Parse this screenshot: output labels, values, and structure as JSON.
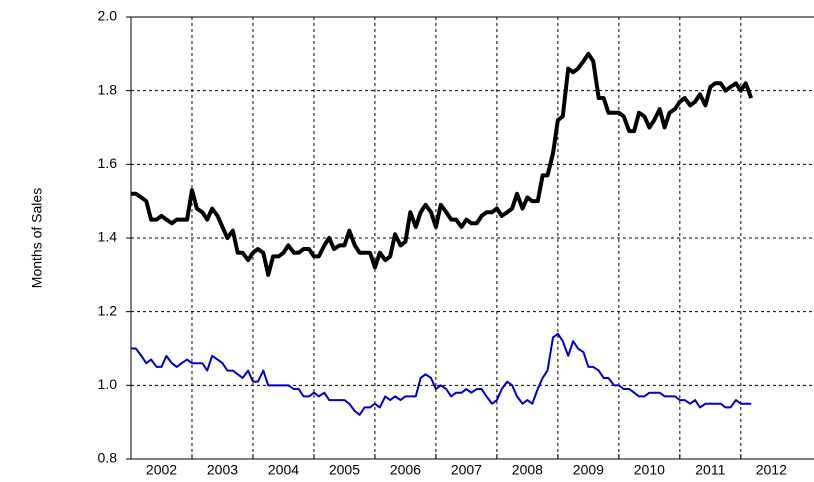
{
  "chart_data": {
    "type": "line",
    "y_label": "Months of Sales",
    "xlim": [
      2002,
      2013.2
    ],
    "xticks": [
      {
        "value": 2002,
        "label": "2002"
      },
      {
        "value": 2003,
        "label": "2003"
      },
      {
        "value": 2004,
        "label": "2004"
      },
      {
        "value": 2005,
        "label": "2005"
      },
      {
        "value": 2006,
        "label": "2006"
      },
      {
        "value": 2007,
        "label": "2007"
      },
      {
        "value": 2008,
        "label": "2008"
      },
      {
        "value": 2009,
        "label": "2009"
      },
      {
        "value": 2010,
        "label": "2010"
      },
      {
        "value": 2011,
        "label": "2011"
      },
      {
        "value": 2012,
        "label": "2012"
      }
    ],
    "ylim": [
      0.8,
      2.0
    ],
    "yticks": [
      0.8,
      {
        "value": 1,
        "label": "1.0"
      },
      1.2,
      1.4,
      1.6,
      1.8,
      {
        "value": 2,
        "label": "2.0"
      }
    ],
    "grid": true,
    "x": [
      2002.0,
      2002.08,
      2002.17,
      2002.25,
      2002.33,
      2002.42,
      2002.5,
      2002.58,
      2002.67,
      2002.75,
      2002.83,
      2002.92,
      2003.0,
      2003.08,
      2003.17,
      2003.25,
      2003.33,
      2003.42,
      2003.5,
      2003.58,
      2003.67,
      2003.75,
      2003.83,
      2003.92,
      2004.0,
      2004.08,
      2004.17,
      2004.25,
      2004.33,
      2004.42,
      2004.5,
      2004.58,
      2004.67,
      2004.75,
      2004.83,
      2004.92,
      2005.0,
      2005.08,
      2005.17,
      2005.25,
      2005.33,
      2005.42,
      2005.5,
      2005.58,
      2005.67,
      2005.75,
      2005.83,
      2005.92,
      2006.0,
      2006.08,
      2006.17,
      2006.25,
      2006.33,
      2006.42,
      2006.5,
      2006.58,
      2006.67,
      2006.75,
      2006.83,
      2006.92,
      2007.0,
      2007.08,
      2007.17,
      2007.25,
      2007.33,
      2007.42,
      2007.5,
      2007.58,
      2007.67,
      2007.75,
      2007.83,
      2007.92,
      2008.0,
      2008.08,
      2008.17,
      2008.25,
      2008.33,
      2008.42,
      2008.5,
      2008.58,
      2008.67,
      2008.75,
      2008.83,
      2008.92,
      2009.0,
      2009.08,
      2009.17,
      2009.25,
      2009.33,
      2009.42,
      2009.5,
      2009.58,
      2009.67,
      2009.75,
      2009.83,
      2009.92,
      2010.0,
      2010.08,
      2010.17,
      2010.25,
      2010.33,
      2010.42,
      2010.5,
      2010.58,
      2010.67,
      2010.75,
      2010.83,
      2010.92,
      2011.0,
      2011.08,
      2011.17,
      2011.25,
      2011.33,
      2011.42,
      2011.5,
      2011.58,
      2011.67,
      2011.75,
      2011.83,
      2011.92,
      2012.0,
      2012.08,
      2012.17
    ],
    "series": [
      {
        "color": "#000000",
        "values": [
          1.52,
          1.52,
          1.51,
          1.5,
          1.45,
          1.45,
          1.46,
          1.45,
          1.44,
          1.45,
          1.45,
          1.45,
          1.53,
          1.48,
          1.47,
          1.45,
          1.48,
          1.46,
          1.43,
          1.4,
          1.42,
          1.36,
          1.36,
          1.34,
          1.36,
          1.37,
          1.36,
          1.3,
          1.35,
          1.35,
          1.36,
          1.38,
          1.36,
          1.36,
          1.37,
          1.37,
          1.35,
          1.35,
          1.38,
          1.4,
          1.37,
          1.38,
          1.38,
          1.42,
          1.38,
          1.36,
          1.36,
          1.36,
          1.32,
          1.36,
          1.34,
          1.35,
          1.41,
          1.38,
          1.39,
          1.47,
          1.43,
          1.47,
          1.49,
          1.47,
          1.43,
          1.49,
          1.47,
          1.45,
          1.45,
          1.43,
          1.45,
          1.44,
          1.44,
          1.46,
          1.47,
          1.47,
          1.48,
          1.46,
          1.47,
          1.48,
          1.52,
          1.48,
          1.51,
          1.5,
          1.5,
          1.57,
          1.57,
          1.63,
          1.72,
          1.73,
          1.86,
          1.85,
          1.86,
          1.88,
          1.9,
          1.88,
          1.78,
          1.78,
          1.74,
          1.74,
          1.74,
          1.73,
          1.69,
          1.69,
          1.74,
          1.73,
          1.7,
          1.72,
          1.75,
          1.7,
          1.74,
          1.75,
          1.77,
          1.78,
          1.76,
          1.77,
          1.79,
          1.76,
          1.81,
          1.82,
          1.82,
          1.8,
          1.81,
          1.82,
          1.8,
          1.82,
          1.78
        ]
      },
      {
        "color": "#0000cc",
        "values": [
          1.1,
          1.1,
          1.08,
          1.06,
          1.07,
          1.05,
          1.05,
          1.08,
          1.06,
          1.05,
          1.06,
          1.07,
          1.06,
          1.06,
          1.06,
          1.04,
          1.08,
          1.07,
          1.06,
          1.04,
          1.04,
          1.03,
          1.02,
          1.04,
          1.01,
          1.01,
          1.04,
          1.0,
          1.0,
          1.0,
          1.0,
          1.0,
          0.99,
          0.99,
          0.97,
          0.97,
          0.98,
          0.97,
          0.98,
          0.96,
          0.96,
          0.96,
          0.96,
          0.95,
          0.93,
          0.92,
          0.94,
          0.94,
          0.95,
          0.94,
          0.97,
          0.96,
          0.97,
          0.96,
          0.97,
          0.97,
          0.97,
          1.02,
          1.03,
          1.02,
          0.99,
          1.0,
          0.99,
          0.97,
          0.98,
          0.98,
          0.99,
          0.98,
          0.99,
          0.99,
          0.97,
          0.95,
          0.96,
          0.99,
          1.01,
          1.0,
          0.97,
          0.95,
          0.96,
          0.95,
          0.99,
          1.02,
          1.04,
          1.13,
          1.14,
          1.12,
          1.08,
          1.12,
          1.1,
          1.09,
          1.05,
          1.05,
          1.04,
          1.02,
          1.02,
          1.0,
          1.0,
          0.99,
          0.99,
          0.98,
          0.97,
          0.97,
          0.98,
          0.98,
          0.98,
          0.97,
          0.97,
          0.97,
          0.96,
          0.96,
          0.95,
          0.96,
          0.94,
          0.95,
          0.95,
          0.95,
          0.95,
          0.94,
          0.94,
          0.96,
          0.95,
          0.95,
          0.95
        ]
      }
    ]
  }
}
